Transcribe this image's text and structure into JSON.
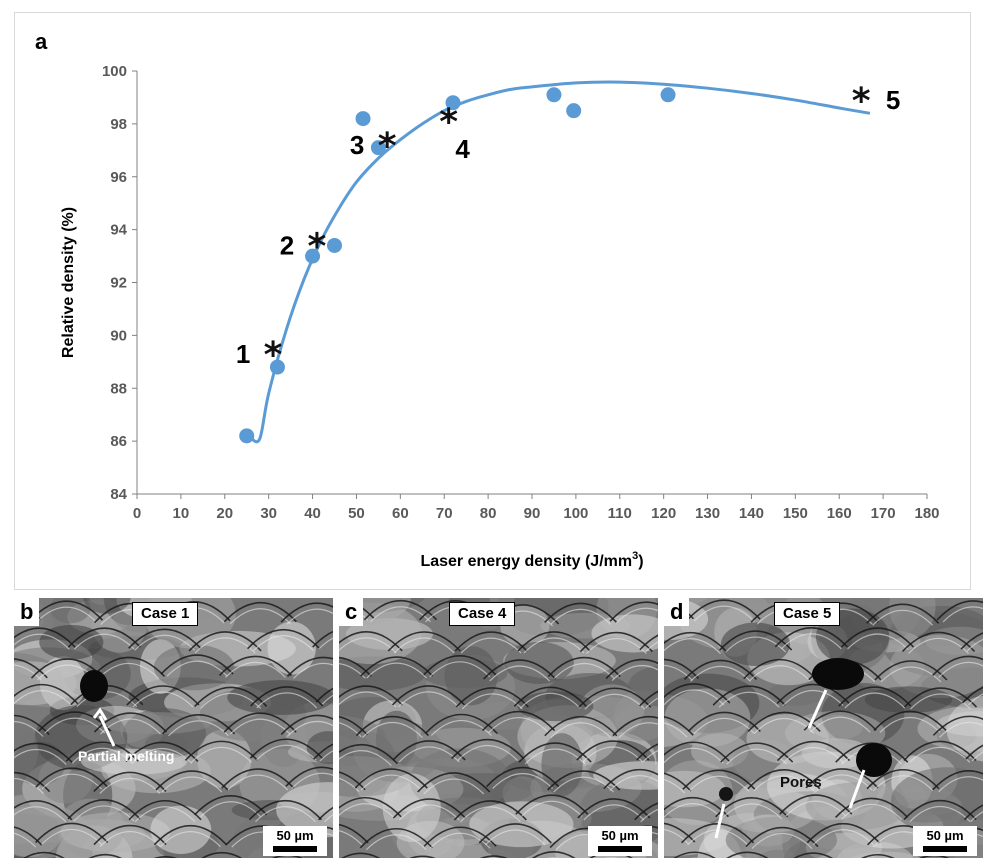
{
  "panel_a": {
    "letter": "a",
    "chart_data": {
      "type": "scatter",
      "xlabel": "Laser energy density (J/mm",
      "xlabel_sup": "3",
      "xlabel_close": ")",
      "ylabel": "Relative density (%)",
      "xlim": [
        0,
        180
      ],
      "ylim": [
        84,
        100
      ],
      "x_ticks": [
        "0",
        "10",
        "20",
        "30",
        "40",
        "50",
        "60",
        "70",
        "80",
        "90",
        "100",
        "110",
        "120",
        "130",
        "140",
        "150",
        "160",
        "170",
        "180"
      ],
      "y_ticks": [
        "84",
        "86",
        "88",
        "90",
        "92",
        "94",
        "96",
        "98",
        "100"
      ],
      "points": [
        {
          "x": 25,
          "y": 86.2
        },
        {
          "x": 32,
          "y": 88.8
        },
        {
          "x": 40,
          "y": 93.0
        },
        {
          "x": 45,
          "y": 93.4
        },
        {
          "x": 51.5,
          "y": 98.2
        },
        {
          "x": 55,
          "y": 97.1
        },
        {
          "x": 72,
          "y": 98.8
        },
        {
          "x": 95,
          "y": 99.1
        },
        {
          "x": 99.5,
          "y": 98.5
        },
        {
          "x": 121,
          "y": 99.1
        }
      ],
      "fit_curve": [
        {
          "x": 26,
          "y": 86.1
        },
        {
          "x": 28,
          "y": 86.1
        },
        {
          "x": 30,
          "y": 87.8
        },
        {
          "x": 34,
          "y": 90.2
        },
        {
          "x": 38,
          "y": 92.1
        },
        {
          "x": 42,
          "y": 93.6
        },
        {
          "x": 46,
          "y": 94.8
        },
        {
          "x": 50,
          "y": 95.8
        },
        {
          "x": 55,
          "y": 96.7
        },
        {
          "x": 60,
          "y": 97.4
        },
        {
          "x": 65,
          "y": 98.0
        },
        {
          "x": 70,
          "y": 98.5
        },
        {
          "x": 75,
          "y": 98.85
        },
        {
          "x": 80,
          "y": 99.1
        },
        {
          "x": 85,
          "y": 99.3
        },
        {
          "x": 90,
          "y": 99.4
        },
        {
          "x": 100,
          "y": 99.55
        },
        {
          "x": 110,
          "y": 99.58
        },
        {
          "x": 120,
          "y": 99.5
        },
        {
          "x": 130,
          "y": 99.35
        },
        {
          "x": 140,
          "y": 99.15
        },
        {
          "x": 150,
          "y": 98.9
        },
        {
          "x": 160,
          "y": 98.6
        },
        {
          "x": 167,
          "y": 98.4
        }
      ],
      "cases": [
        {
          "label": "1",
          "x": 31,
          "y": 89.3,
          "label_side": "left"
        },
        {
          "label": "2",
          "x": 41,
          "y": 93.4,
          "label_side": "left"
        },
        {
          "label": "3",
          "x": 57,
          "y": 97.2,
          "label_side": "left"
        },
        {
          "label": "4",
          "x": 71,
          "y": 98.1,
          "label_side": "below-right"
        },
        {
          "label": "5",
          "x": 165,
          "y": 98.9,
          "label_side": "right"
        }
      ],
      "marker_color": "#5b9bd5",
      "line_color": "#5b9bd5",
      "case_marker": "*",
      "grid": false
    }
  },
  "panel_b": {
    "letter": "b",
    "case": "Case 1",
    "annotation": "Partial melting",
    "scale": "50 µm"
  },
  "panel_c": {
    "letter": "c",
    "case": "Case 4",
    "scale": "50 µm"
  },
  "panel_d": {
    "letter": "d",
    "case": "Case 5",
    "annotation": "Pores",
    "scale": "50 µm"
  }
}
